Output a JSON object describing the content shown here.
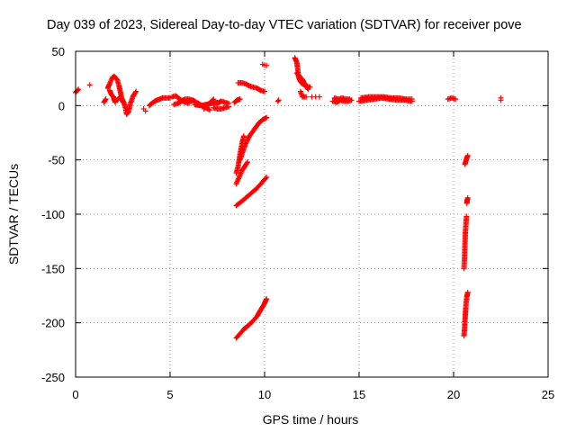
{
  "chart_data": {
    "type": "scatter",
    "title": "Day 039 of 2023, Sidereal Day-to-day VTEC variation (SDTVAR) for receiver pove",
    "xlabel": "GPS time / hours",
    "ylabel": "SDTVAR / TECUs",
    "xlim": [
      0,
      25
    ],
    "ylim": [
      -250,
      50
    ],
    "xticks": [
      0,
      5,
      10,
      15,
      20,
      25
    ],
    "yticks": [
      -250,
      -200,
      -150,
      -100,
      -50,
      0,
      50
    ],
    "grid": true,
    "marker": "+",
    "marker_color": "#ff0000",
    "segments": [
      {
        "kind": "line",
        "pts": [
          [
            0.0,
            12
          ],
          [
            0.1,
            14
          ],
          [
            0.15,
            15
          ]
        ]
      },
      {
        "kind": "points",
        "pts": [
          [
            0.75,
            19
          ]
        ]
      },
      {
        "kind": "line",
        "pts": [
          [
            1.5,
            3
          ],
          [
            1.6,
            6
          ]
        ]
      },
      {
        "kind": "line",
        "pts": [
          [
            1.7,
            16
          ],
          [
            1.8,
            20
          ],
          [
            1.95,
            26
          ],
          [
            2.05,
            27
          ],
          [
            2.2,
            24
          ],
          [
            2.3,
            18
          ],
          [
            2.4,
            10
          ],
          [
            2.5,
            3
          ]
        ]
      },
      {
        "kind": "line",
        "pts": [
          [
            1.8,
            14
          ],
          [
            1.9,
            10
          ],
          [
            2.0,
            8
          ],
          [
            2.05,
            5
          ],
          [
            2.1,
            3
          ]
        ]
      },
      {
        "kind": "line",
        "pts": [
          [
            2.2,
            5
          ],
          [
            2.35,
            8
          ],
          [
            2.45,
            6
          ],
          [
            2.55,
            3
          ],
          [
            2.65,
            -3
          ],
          [
            2.7,
            -8
          ],
          [
            2.8,
            -6
          ],
          [
            2.9,
            2
          ],
          [
            3.05,
            9
          ],
          [
            3.2,
            13
          ]
        ]
      },
      {
        "kind": "points",
        "pts": [
          [
            3.6,
            -3
          ],
          [
            3.7,
            -5
          ]
        ]
      },
      {
        "kind": "line",
        "pts": [
          [
            3.9,
            0
          ],
          [
            4.1,
            3
          ],
          [
            4.3,
            5
          ],
          [
            4.6,
            7
          ],
          [
            5.0,
            7
          ]
        ]
      },
      {
        "kind": "line",
        "pts": [
          [
            5.1,
            8
          ],
          [
            5.3,
            9
          ],
          [
            5.5,
            6
          ],
          [
            5.8,
            3
          ],
          [
            6.0,
            2
          ]
        ]
      },
      {
        "kind": "line",
        "pts": [
          [
            5.2,
            1
          ],
          [
            5.4,
            2
          ],
          [
            5.6,
            4
          ],
          [
            5.8,
            6
          ],
          [
            6.0,
            6
          ],
          [
            6.3,
            4
          ]
        ]
      },
      {
        "kind": "line",
        "pts": [
          [
            5.9,
            4
          ],
          [
            6.2,
            5
          ],
          [
            6.5,
            2
          ],
          [
            6.8,
            -1
          ],
          [
            7.1,
            -4
          ]
        ]
      },
      {
        "kind": "line",
        "pts": [
          [
            6.3,
            1
          ],
          [
            6.6,
            0
          ],
          [
            6.9,
            1
          ],
          [
            7.2,
            2
          ],
          [
            7.5,
            3
          ]
        ]
      },
      {
        "kind": "line",
        "pts": [
          [
            6.8,
            -3
          ],
          [
            7.0,
            1
          ],
          [
            7.2,
            4
          ],
          [
            7.3,
            6
          ]
        ]
      },
      {
        "kind": "line",
        "pts": [
          [
            7.3,
            -2
          ],
          [
            7.5,
            -3
          ],
          [
            7.7,
            -3
          ],
          [
            7.9,
            -2
          ],
          [
            8.1,
            -1
          ]
        ]
      },
      {
        "kind": "line",
        "pts": [
          [
            7.5,
            2
          ],
          [
            7.7,
            4
          ],
          [
            7.9,
            3
          ],
          [
            8.1,
            2
          ]
        ]
      },
      {
        "kind": "line",
        "pts": [
          [
            8.4,
            3
          ],
          [
            8.55,
            5
          ],
          [
            8.7,
            6
          ]
        ]
      },
      {
        "kind": "line",
        "pts": [
          [
            8.6,
            21
          ],
          [
            8.8,
            21
          ],
          [
            9.0,
            20
          ],
          [
            9.2,
            18
          ],
          [
            9.4,
            17
          ],
          [
            9.6,
            16
          ],
          [
            9.8,
            14
          ],
          [
            10.0,
            13
          ]
        ]
      },
      {
        "kind": "line",
        "pts": [
          [
            8.5,
            -62
          ],
          [
            8.6,
            -56
          ],
          [
            8.7,
            -45
          ],
          [
            8.8,
            -35
          ],
          [
            8.9,
            -28
          ]
        ]
      },
      {
        "kind": "line",
        "pts": [
          [
            8.5,
            -72
          ],
          [
            8.65,
            -66
          ],
          [
            8.8,
            -60
          ],
          [
            8.95,
            -56
          ],
          [
            9.1,
            -52
          ]
        ]
      },
      {
        "kind": "line",
        "pts": [
          [
            8.7,
            -50
          ],
          [
            8.85,
            -42
          ],
          [
            9.0,
            -35
          ],
          [
            9.2,
            -28
          ],
          [
            9.45,
            -22
          ],
          [
            9.7,
            -16
          ],
          [
            9.9,
            -13
          ],
          [
            10.1,
            -11
          ]
        ]
      },
      {
        "kind": "line",
        "pts": [
          [
            8.5,
            -92
          ],
          [
            8.8,
            -88
          ],
          [
            9.2,
            -82
          ],
          [
            9.6,
            -76
          ],
          [
            9.9,
            -70
          ],
          [
            10.1,
            -66
          ]
        ]
      },
      {
        "kind": "line",
        "pts": [
          [
            8.5,
            -214
          ],
          [
            8.7,
            -210
          ],
          [
            8.9,
            -206
          ],
          [
            9.1,
            -203
          ],
          [
            9.35,
            -199
          ],
          [
            9.6,
            -194
          ],
          [
            9.8,
            -188
          ],
          [
            10.0,
            -182
          ],
          [
            10.1,
            -178
          ]
        ]
      },
      {
        "kind": "points",
        "pts": [
          [
            9.9,
            38
          ],
          [
            10.0,
            37
          ],
          [
            10.1,
            37
          ]
        ]
      },
      {
        "kind": "points",
        "pts": [
          [
            10.7,
            4
          ],
          [
            10.75,
            5
          ]
        ]
      },
      {
        "kind": "line",
        "pts": [
          [
            11.6,
            44
          ],
          [
            11.7,
            40
          ],
          [
            11.75,
            34
          ],
          [
            11.8,
            26
          ],
          [
            11.9,
            22
          ],
          [
            12.0,
            20
          ],
          [
            12.2,
            18
          ],
          [
            12.4,
            17
          ]
        ]
      },
      {
        "kind": "line",
        "pts": [
          [
            11.7,
            30
          ],
          [
            11.85,
            27
          ],
          [
            12.0,
            24
          ],
          [
            12.15,
            19
          ],
          [
            12.3,
            15
          ]
        ]
      },
      {
        "kind": "line",
        "pts": [
          [
            11.9,
            13
          ],
          [
            12.0,
            8
          ],
          [
            12.2,
            8
          ]
        ]
      },
      {
        "kind": "points",
        "pts": [
          [
            12.5,
            8
          ],
          [
            12.7,
            8
          ],
          [
            12.9,
            8
          ]
        ]
      },
      {
        "kind": "line",
        "pts": [
          [
            13.6,
            4
          ],
          [
            13.8,
            3
          ],
          [
            14.0,
            5
          ],
          [
            14.2,
            4
          ],
          [
            14.4,
            4
          ],
          [
            14.6,
            5
          ]
        ]
      },
      {
        "kind": "line",
        "pts": [
          [
            13.7,
            7
          ],
          [
            13.9,
            6
          ],
          [
            14.1,
            7
          ],
          [
            14.3,
            6
          ],
          [
            14.5,
            6
          ]
        ]
      },
      {
        "kind": "line",
        "pts": [
          [
            15.0,
            4
          ],
          [
            15.4,
            5
          ],
          [
            15.8,
            6
          ],
          [
            16.2,
            7
          ],
          [
            16.6,
            6
          ],
          [
            17.0,
            5
          ],
          [
            17.4,
            5
          ],
          [
            17.8,
            4
          ]
        ]
      },
      {
        "kind": "line",
        "pts": [
          [
            15.1,
            7
          ],
          [
            15.5,
            8
          ],
          [
            15.9,
            8
          ],
          [
            16.3,
            8
          ],
          [
            16.7,
            7
          ],
          [
            17.1,
            7
          ],
          [
            17.5,
            6
          ],
          [
            17.8,
            6
          ]
        ]
      },
      {
        "kind": "line",
        "pts": [
          [
            19.7,
            6
          ],
          [
            19.9,
            7
          ],
          [
            20.1,
            6
          ]
        ]
      },
      {
        "kind": "points",
        "pts": [
          [
            22.5,
            5
          ],
          [
            22.5,
            7
          ]
        ]
      },
      {
        "kind": "line",
        "pts": [
          [
            20.6,
            -54
          ],
          [
            20.65,
            -51
          ],
          [
            20.7,
            -48
          ],
          [
            20.75,
            -46
          ]
        ]
      },
      {
        "kind": "line",
        "pts": [
          [
            20.7,
            -90
          ],
          [
            20.72,
            -87
          ],
          [
            20.75,
            -85
          ]
        ]
      },
      {
        "kind": "line",
        "pts": [
          [
            20.55,
            -150
          ],
          [
            20.58,
            -140
          ],
          [
            20.6,
            -128
          ],
          [
            20.62,
            -118
          ],
          [
            20.65,
            -110
          ],
          [
            20.68,
            -102
          ]
        ]
      },
      {
        "kind": "line",
        "pts": [
          [
            20.55,
            -212
          ],
          [
            20.58,
            -205
          ],
          [
            20.6,
            -198
          ],
          [
            20.63,
            -190
          ],
          [
            20.66,
            -182
          ],
          [
            20.7,
            -176
          ],
          [
            20.75,
            -172
          ]
        ]
      }
    ]
  }
}
